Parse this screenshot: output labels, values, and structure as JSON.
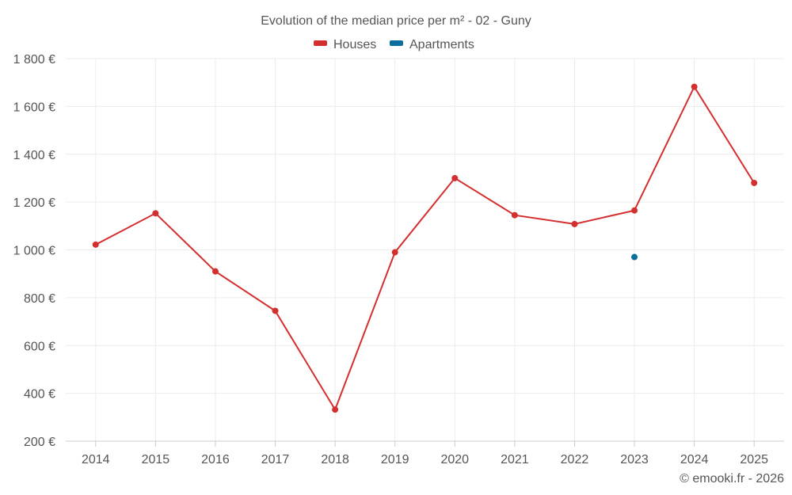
{
  "chart_data": {
    "type": "line",
    "title": "Evolution of the median price per m² - 02 - Guny",
    "categories": [
      "2014",
      "2015",
      "2016",
      "2017",
      "2018",
      "2019",
      "2020",
      "2021",
      "2022",
      "2023",
      "2024",
      "2025"
    ],
    "series": [
      {
        "name": "Houses",
        "color": "#d32f2f",
        "values": [
          1022,
          1153,
          910,
          745,
          332,
          990,
          1300,
          1145,
          1108,
          1165,
          1682,
          1280
        ]
      },
      {
        "name": "Apartments",
        "color": "#0b6e9e",
        "values": [
          null,
          null,
          null,
          null,
          null,
          null,
          null,
          null,
          null,
          970,
          null,
          null
        ]
      }
    ],
    "ylim": [
      200,
      1800
    ],
    "yticks": [
      200,
      400,
      600,
      800,
      1000,
      1200,
      1400,
      1600,
      1800
    ],
    "ytick_labels": [
      "200 €",
      "400 €",
      "600 €",
      "800 €",
      "1 000 €",
      "1 200 €",
      "1 400 €",
      "1 600 €",
      "1 800 €"
    ],
    "xlabel": "",
    "ylabel": "",
    "grid": true,
    "legend_position": "top-center",
    "credit": "© emooki.fr - 2026"
  }
}
